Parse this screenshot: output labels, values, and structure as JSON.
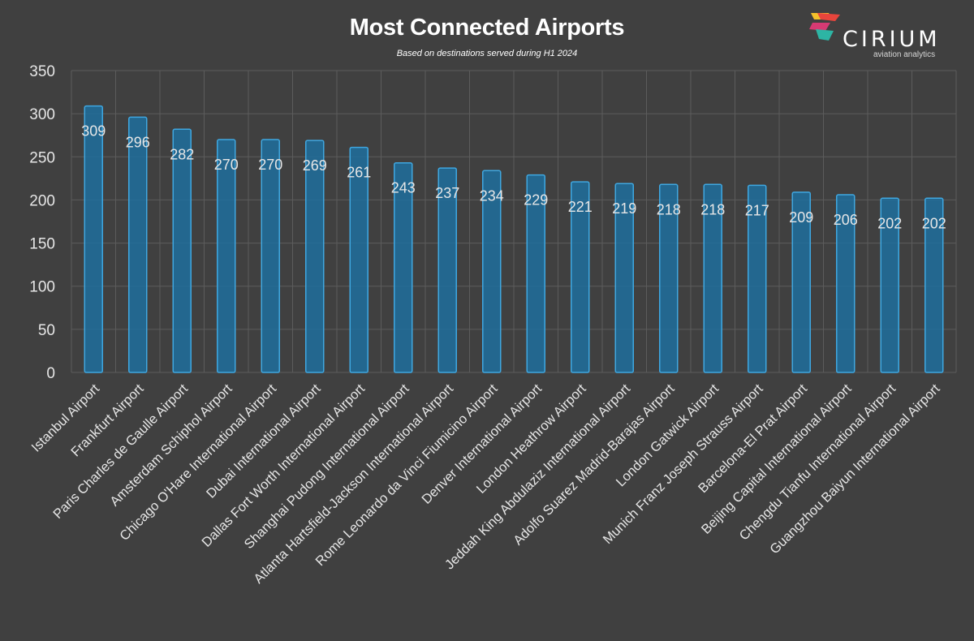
{
  "title": "Most Connected Airports",
  "subtitle": "Based on destinations served during H1 2024",
  "logo": {
    "name": "CIRIUM",
    "tagline": "aviation analytics",
    "colors": [
      "#e8453c",
      "#f4c12b",
      "#2db5a4",
      "#d63a73"
    ]
  },
  "colors": {
    "background": "#404040",
    "bar": "#1f6f9e",
    "bar_edge": "#3fa7e0",
    "grid": "#5c5c5c",
    "text": "#e6e6e6"
  },
  "chart_data": {
    "type": "bar",
    "title": "Most Connected Airports",
    "subtitle": "Based on destinations served during H1 2024",
    "xlabel": "",
    "ylabel": "",
    "ylim": [
      0,
      350
    ],
    "yticks": [
      0,
      50,
      100,
      150,
      200,
      250,
      300,
      350
    ],
    "grid": true,
    "legend": "none",
    "categories": [
      "Istanbul Airport",
      "Frankfurt Airport",
      "Paris Charles de Gaulle Airport",
      "Amsterdam Schiphol Airport",
      "Chicago O'Hare International Airport",
      "Dubai International Airport",
      "Dallas Fort Worth International Airport",
      "Shanghai Pudong International Airport",
      "Atlanta Hartsfield-Jackson International Airport",
      "Rome Leonardo da Vinci Fiumicino Airport",
      "Denver International Airport",
      "London Heathrow Airport",
      "Jeddah King Abdulaziz International Airport",
      "Adolfo Suarez Madrid-Barajas Airport",
      "London Gatwick Airport",
      "Munich Franz Joseph Strauss Airport",
      "Barcelona-El Prat Airport",
      "Beijing Capital International Airport",
      "Chengdu Tianfu International Airport",
      "Guangzhou Baiyun International Airport"
    ],
    "values": [
      309,
      296,
      282,
      270,
      270,
      269,
      261,
      243,
      237,
      234,
      229,
      221,
      219,
      218,
      218,
      217,
      209,
      206,
      202,
      202
    ]
  }
}
